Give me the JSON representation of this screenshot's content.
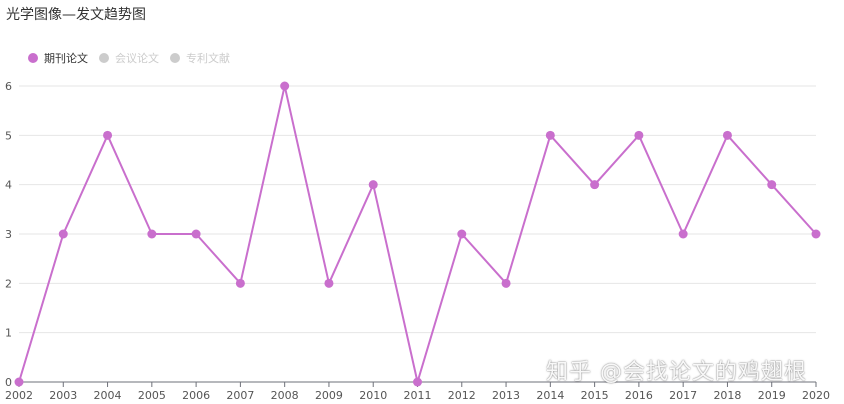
{
  "title": "光学图像—发文趋势图",
  "legend": [
    {
      "label": "期刊论文",
      "color": "#c96fcd",
      "active": true
    },
    {
      "label": "会议论文",
      "color": "#cccccc",
      "active": false
    },
    {
      "label": "专利文献",
      "color": "#cccccc",
      "active": false
    }
  ],
  "watermark": "知乎 @会找论文的鸡翅根",
  "chart_data": {
    "type": "line",
    "title": "光学图像—发文趋势图",
    "xlabel": "",
    "ylabel": "",
    "categories": [
      "2002",
      "2003",
      "2004",
      "2005",
      "2006",
      "2007",
      "2008",
      "2009",
      "2010",
      "2011",
      "2012",
      "2013",
      "2014",
      "2015",
      "2016",
      "2017",
      "2018",
      "2019",
      "2020"
    ],
    "series": [
      {
        "name": "期刊论文",
        "color": "#c96fcd",
        "values": [
          0,
          3,
          5,
          3,
          3,
          2,
          6,
          2,
          4,
          0,
          3,
          2,
          5,
          4,
          5,
          3,
          5,
          4,
          3
        ]
      }
    ],
    "ylim": [
      0,
      6
    ],
    "yticks": [
      0,
      1,
      2,
      3,
      4,
      5,
      6
    ],
    "grid": true,
    "legend_position": "top-left"
  }
}
